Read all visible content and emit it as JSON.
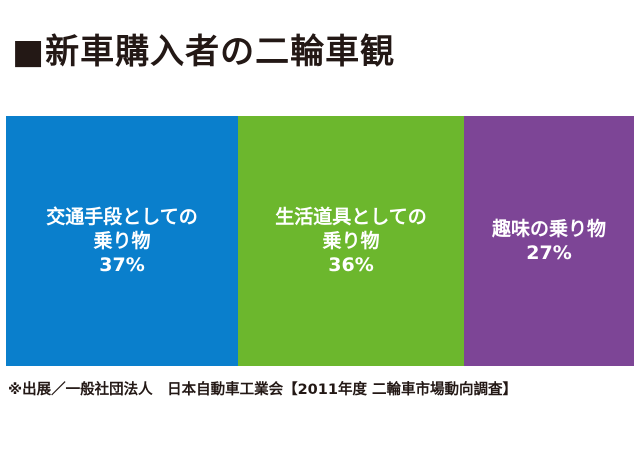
{
  "title": "■新車購入者の二輪車観",
  "source": "※出展／一般社団法人　日本自動車工業会【2011年度 二輪車市場動向調査】",
  "chart_data": {
    "type": "bar",
    "orientation": "stacked-100-percent-horizontal",
    "unit": "%",
    "categories": [
      "交通手段としての乗り物",
      "生活道具としての乗り物",
      "趣味の乗り物"
    ],
    "values": [
      37,
      36,
      27
    ],
    "segments": [
      {
        "line1": "交通手段としての",
        "line2": "乗り物",
        "value_label": "37%",
        "value": 37,
        "color": "#0a7fcc"
      },
      {
        "line1": "生活道具としての",
        "line2": "乗り物",
        "value_label": "36%",
        "value": 36,
        "color": "#6cb72d"
      },
      {
        "line1": "趣味の乗り物",
        "line2": "",
        "value_label": "27%",
        "value": 27,
        "color": "#7d4596"
      }
    ]
  }
}
